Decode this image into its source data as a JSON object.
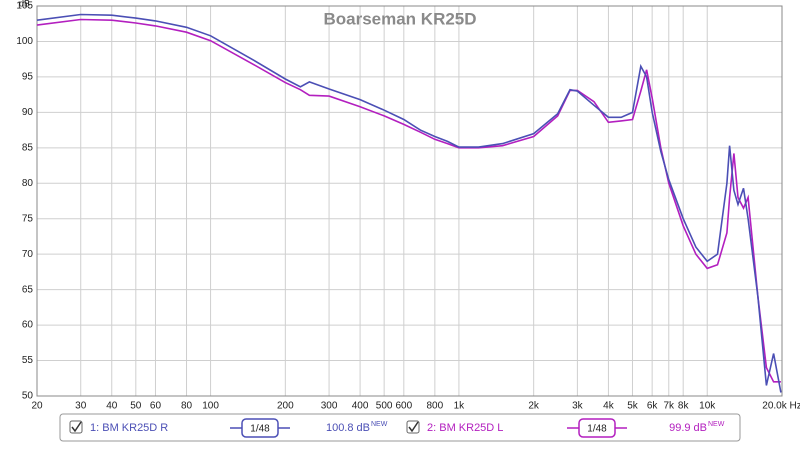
{
  "chart_data": {
    "type": "line",
    "title": "Boarseman KR25D",
    "y_label": "dB",
    "log_x": true,
    "grid": true,
    "x": [
      20,
      30,
      40,
      50,
      60,
      80,
      100,
      150,
      200,
      230,
      250,
      300,
      400,
      500,
      600,
      700,
      800,
      900,
      1000,
      1200,
      1500,
      2000,
      2500,
      2800,
      3000,
      3500,
      4000,
      4500,
      5000,
      5400,
      5700,
      6000,
      6500,
      7000,
      8000,
      9000,
      10000,
      11000,
      12000,
      12300,
      12800,
      13300,
      14000,
      14600,
      16000,
      17300,
      18500,
      19800
    ],
    "series": [
      {
        "name": "1: BM KR25D R",
        "color": "#4b4fb5",
        "smoothing": "1/48",
        "level": "100.8 dB",
        "level_tag": "NEW",
        "values": [
          103.0,
          103.8,
          103.7,
          103.3,
          102.9,
          102.0,
          100.8,
          97.3,
          94.7,
          93.6,
          94.3,
          93.3,
          91.8,
          90.3,
          89.0,
          87.5,
          86.6,
          85.9,
          85.1,
          85.1,
          85.6,
          87.0,
          89.8,
          93.2,
          93.0,
          91.0,
          89.3,
          89.3,
          90.0,
          96.5,
          95.0,
          90.0,
          84.5,
          80.5,
          75.0,
          71.0,
          69.0,
          70.0,
          80.0,
          85.3,
          79.0,
          77.0,
          79.3,
          75.0,
          64.0,
          51.5,
          56.0,
          50.5
        ]
      },
      {
        "name": "2: BM KR25D L",
        "color": "#b31fbf",
        "smoothing": "1/48",
        "level": "99.9 dB",
        "level_tag": "NEW",
        "values": [
          102.3,
          103.1,
          103.0,
          102.6,
          102.2,
          101.3,
          100.1,
          96.7,
          94.2,
          93.2,
          92.4,
          92.3,
          90.8,
          89.5,
          88.3,
          87.2,
          86.2,
          85.6,
          85.0,
          85.0,
          85.3,
          86.6,
          89.5,
          93.1,
          93.1,
          91.5,
          88.6,
          88.8,
          89.0,
          93.0,
          96.0,
          92.0,
          85.0,
          80.0,
          74.0,
          70.0,
          68.0,
          68.5,
          73.0,
          78.0,
          84.2,
          78.0,
          76.5,
          78.0,
          64.0,
          54.0,
          52.0,
          52.0
        ]
      }
    ],
    "xlim": [
      20,
      20000
    ],
    "xticks": [
      20,
      30,
      40,
      50,
      60,
      80,
      100,
      200,
      300,
      400,
      500,
      600,
      800,
      {
        "value": 1000,
        "label": "1k"
      },
      {
        "value": 2000,
        "label": "2k"
      },
      {
        "value": 3000,
        "label": "3k"
      },
      {
        "value": 4000,
        "label": "4k"
      },
      {
        "value": 5000,
        "label": "5k"
      },
      {
        "value": 6000,
        "label": "6k"
      },
      {
        "value": 7000,
        "label": "7k"
      },
      {
        "value": 8000,
        "label": "8k"
      },
      {
        "value": 10000,
        "label": "10k"
      },
      {
        "value": 20000,
        "label": "20.0k Hz"
      }
    ],
    "ylim": [
      50,
      105
    ],
    "yticks": [
      50,
      55,
      60,
      65,
      70,
      75,
      80,
      85,
      90,
      95,
      100,
      105
    ]
  }
}
